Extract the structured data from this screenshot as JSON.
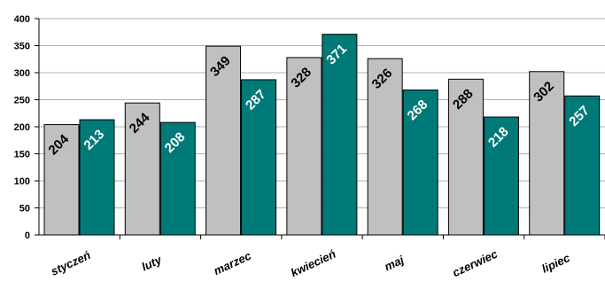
{
  "chart_data": {
    "type": "bar",
    "title": "",
    "xlabel": "",
    "ylabel": "",
    "categories": [
      "styczeń",
      "luty",
      "marzec",
      "kwiecień",
      "maj",
      "czerwiec",
      "lipiec"
    ],
    "series": [
      {
        "values": [
          204,
          244,
          349,
          328,
          326,
          288,
          302
        ],
        "color": "#c0c0c0"
      },
      {
        "values": [
          213,
          208,
          287,
          371,
          268,
          218,
          257
        ],
        "color": "#007a78"
      }
    ],
    "ylim": [
      0,
      400
    ],
    "yticks": [
      0,
      50,
      100,
      150,
      200,
      250,
      300,
      350,
      400
    ],
    "grid": true,
    "legend": "none",
    "colors": {
      "grid": "#b0b0b0",
      "axis": "#000000",
      "bar_outline": "#000000"
    }
  }
}
